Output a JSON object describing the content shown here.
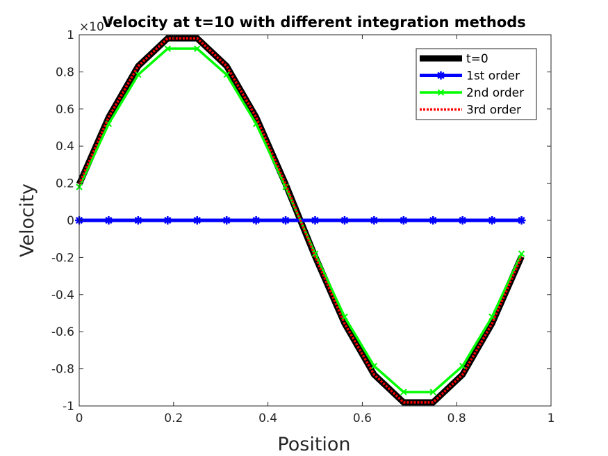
{
  "chart_data": {
    "type": "line",
    "title": "Velocity at t=10 with different integration methods",
    "xlabel": "Position",
    "ylabel": "Velocity",
    "xlim": [
      0,
      1
    ],
    "ylim": [
      -1,
      1
    ],
    "y_exponent_label": "×10",
    "y_exponent": "-5",
    "xticks": [
      0,
      0.2,
      0.4,
      0.6,
      0.8,
      1
    ],
    "xtick_labels": [
      "0",
      "0.2",
      "0.4",
      "0.6",
      "0.8",
      "1"
    ],
    "yticks": [
      -1,
      -0.8,
      -0.6,
      -0.4,
      -0.2,
      0,
      0.2,
      0.4,
      0.6,
      0.8,
      1
    ],
    "ytick_labels": [
      "-1",
      "-0.8",
      "-0.6",
      "-0.4",
      "-0.2",
      "0",
      "0.2",
      "0.4",
      "0.6",
      "0.8",
      "1"
    ],
    "grid": false,
    "legend_position": "top-right",
    "x": [
      0,
      0.0625,
      0.125,
      0.1875,
      0.25,
      0.3125,
      0.375,
      0.4375,
      0.5,
      0.5625,
      0.625,
      0.6875,
      0.75,
      0.8125,
      0.875,
      0.9375
    ],
    "series": [
      {
        "name": "t=0",
        "color": "#000000",
        "marker": "none",
        "style": "solid",
        "values": [
          0.195,
          0.556,
          0.831,
          0.981,
          0.981,
          0.831,
          0.556,
          0.195,
          -0.195,
          -0.556,
          -0.831,
          -0.981,
          -0.981,
          -0.831,
          -0.556,
          -0.195
        ]
      },
      {
        "name": "1st order",
        "color": "#0000ff",
        "marker": "star",
        "style": "solid",
        "values": [
          0,
          0,
          0,
          0,
          0,
          0,
          0,
          0,
          0,
          0,
          0,
          0,
          0,
          0,
          0,
          0
        ]
      },
      {
        "name": "2nd order",
        "color": "#00ff00",
        "marker": "x",
        "style": "solid",
        "values": [
          0.18,
          0.52,
          0.785,
          0.925,
          0.925,
          0.785,
          0.52,
          0.18,
          -0.18,
          -0.52,
          -0.785,
          -0.925,
          -0.925,
          -0.785,
          -0.52,
          -0.18
        ]
      },
      {
        "name": "3rd order",
        "color": "#ff0000",
        "marker": "none",
        "style": "dotted",
        "values": [
          0.195,
          0.556,
          0.831,
          0.981,
          0.981,
          0.831,
          0.556,
          0.195,
          -0.195,
          -0.556,
          -0.831,
          -0.981,
          -0.981,
          -0.831,
          -0.556,
          -0.195
        ]
      }
    ],
    "x_positions_note": ""
  }
}
